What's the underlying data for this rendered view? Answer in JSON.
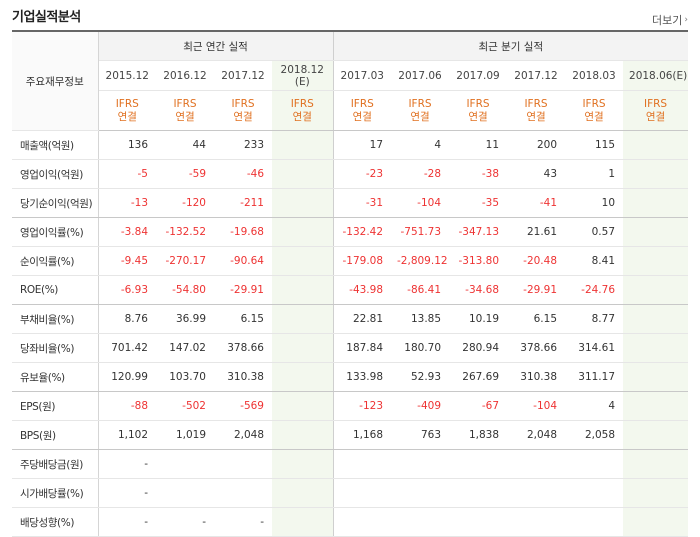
{
  "section": {
    "title": "기업실적분석",
    "more_label": "더보기",
    "more_icon": "chevron-right-icon"
  },
  "header": {
    "stub_label": "주요재무정보",
    "annual_group": "최근 연간 실적",
    "quarter_group": "최근 분기 실적",
    "annual_periods": [
      "2015.12",
      "2016.12",
      "2017.12",
      "2018.12\n(E)"
    ],
    "quarter_periods": [
      "2017.03",
      "2017.06",
      "2017.09",
      "2017.12",
      "2018.03",
      "2018.06(E)"
    ],
    "basis_line1": "IFRS",
    "basis_line2": "연결"
  },
  "rows": [
    {
      "label": "매출액(억원)",
      "values": [
        "136",
        "44",
        "233",
        "",
        "17",
        "4",
        "11",
        "200",
        "115",
        ""
      ]
    },
    {
      "label": "영업이익(억원)",
      "values": [
        "-5",
        "-59",
        "-46",
        "",
        "-23",
        "-28",
        "-38",
        "43",
        "1",
        ""
      ]
    },
    {
      "label": "당기순이익(억원)",
      "values": [
        "-13",
        "-120",
        "-211",
        "",
        "-31",
        "-104",
        "-35",
        "-41",
        "10",
        ""
      ]
    },
    {
      "label": "영업이익률(%)",
      "values": [
        "-3.84",
        "-132.52",
        "-19.68",
        "",
        "-132.42",
        "-751.73",
        "-347.13",
        "21.61",
        "0.57",
        ""
      ]
    },
    {
      "label": "순이익률(%)",
      "values": [
        "-9.45",
        "-270.17",
        "-90.64",
        "",
        "-179.08",
        "-2,809.12",
        "-313.80",
        "-20.48",
        "8.41",
        ""
      ]
    },
    {
      "label": "ROE(%)",
      "values": [
        "-6.93",
        "-54.80",
        "-29.91",
        "",
        "-43.98",
        "-86.41",
        "-34.68",
        "-29.91",
        "-24.76",
        ""
      ]
    },
    {
      "label": "부채비율(%)",
      "values": [
        "8.76",
        "36.99",
        "6.15",
        "",
        "22.81",
        "13.85",
        "10.19",
        "6.15",
        "8.77",
        ""
      ]
    },
    {
      "label": "당좌비율(%)",
      "values": [
        "701.42",
        "147.02",
        "378.66",
        "",
        "187.84",
        "180.70",
        "280.94",
        "378.66",
        "314.61",
        ""
      ]
    },
    {
      "label": "유보율(%)",
      "values": [
        "120.99",
        "103.70",
        "310.38",
        "",
        "133.98",
        "52.93",
        "267.69",
        "310.38",
        "311.17",
        ""
      ]
    },
    {
      "label": "EPS(원)",
      "values": [
        "-88",
        "-502",
        "-569",
        "",
        "-123",
        "-409",
        "-67",
        "-104",
        "4",
        ""
      ]
    },
    {
      "label": "BPS(원)",
      "values": [
        "1,102",
        "1,019",
        "2,048",
        "",
        "1,168",
        "763",
        "1,838",
        "2,048",
        "2,058",
        ""
      ]
    },
    {
      "label": "주당배당금(원)",
      "values": [
        "-",
        "",
        "",
        "",
        "",
        "",
        "",
        "",
        "",
        ""
      ]
    },
    {
      "label": "시가배당률(%)",
      "values": [
        "-",
        "",
        "",
        "",
        "",
        "",
        "",
        "",
        "",
        ""
      ]
    },
    {
      "label": "배당성향(%)",
      "values": [
        "-",
        "-",
        "-",
        "",
        "",
        "",
        "",
        "",
        "",
        ""
      ]
    }
  ]
}
